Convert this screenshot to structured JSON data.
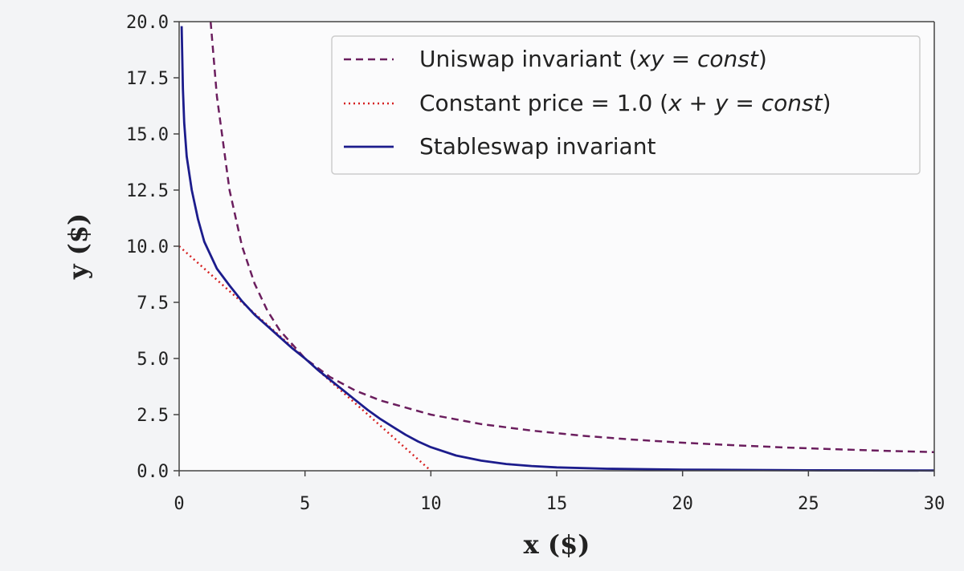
{
  "chart_data": {
    "type": "line",
    "xlabel": "x ($)",
    "ylabel": "y ($)",
    "xlim": [
      0,
      30
    ],
    "ylim": [
      0,
      20
    ],
    "xticks": [
      0,
      5,
      10,
      15,
      20,
      25,
      30
    ],
    "xtick_labels": [
      "0",
      "5",
      "10",
      "15",
      "20",
      "25",
      "30"
    ],
    "yticks": [
      0,
      2.5,
      5,
      7.5,
      10,
      12.5,
      15,
      17.5,
      20
    ],
    "ytick_labels": [
      "0.0",
      "2.5",
      "5.0",
      "7.5",
      "10.0",
      "12.5",
      "15.0",
      "17.5",
      "20.0"
    ],
    "grid": false,
    "legend_position": "top-right",
    "series": [
      {
        "name": "Uniswap invariant (xy = const)",
        "style": "dashed",
        "color": "#6b1e5e",
        "points": [
          [
            1.25,
            20
          ],
          [
            1.5,
            16.67
          ],
          [
            2,
            12.5
          ],
          [
            2.5,
            10
          ],
          [
            3,
            8.33
          ],
          [
            3.5,
            7.14
          ],
          [
            4,
            6.25
          ],
          [
            5,
            5
          ],
          [
            6,
            4.17
          ],
          [
            7,
            3.57
          ],
          [
            8,
            3.13
          ],
          [
            10,
            2.5
          ],
          [
            12,
            2.08
          ],
          [
            14,
            1.79
          ],
          [
            16,
            1.56
          ],
          [
            18,
            1.39
          ],
          [
            20,
            1.25
          ],
          [
            22,
            1.14
          ],
          [
            24,
            1.04
          ],
          [
            26,
            0.96
          ],
          [
            28,
            0.89
          ],
          [
            30,
            0.83
          ]
        ]
      },
      {
        "name": "Constant price = 1.0 (x + y = const)",
        "style": "dotted",
        "color": "#d62020",
        "points": [
          [
            0,
            10
          ],
          [
            10,
            0
          ]
        ]
      },
      {
        "name": "Stableswap invariant",
        "style": "solid",
        "color": "#1c1c8c",
        "points": [
          [
            0.1,
            19.8
          ],
          [
            0.15,
            17
          ],
          [
            0.2,
            15.5
          ],
          [
            0.3,
            14
          ],
          [
            0.5,
            12.5
          ],
          [
            0.75,
            11.2
          ],
          [
            1,
            10.2
          ],
          [
            1.5,
            9
          ],
          [
            2,
            8.25
          ],
          [
            2.5,
            7.55
          ],
          [
            3,
            6.95
          ],
          [
            3.5,
            6.45
          ],
          [
            4,
            5.95
          ],
          [
            4.5,
            5.45
          ],
          [
            5,
            5
          ],
          [
            5.5,
            4.5
          ],
          [
            6,
            4.05
          ],
          [
            6.5,
            3.6
          ],
          [
            7,
            3.15
          ],
          [
            7.5,
            2.7
          ],
          [
            8,
            2.3
          ],
          [
            8.5,
            1.95
          ],
          [
            9,
            1.6
          ],
          [
            9.5,
            1.3
          ],
          [
            10,
            1.05
          ],
          [
            11,
            0.68
          ],
          [
            12,
            0.45
          ],
          [
            13,
            0.3
          ],
          [
            14,
            0.21
          ],
          [
            15,
            0.15
          ],
          [
            17,
            0.09
          ],
          [
            20,
            0.05
          ],
          [
            25,
            0.02
          ],
          [
            30,
            0.01
          ]
        ]
      }
    ]
  },
  "legend": {
    "uniswap": {
      "pre": "Uniswap invariant (",
      "math": "xy",
      "eq": " = ",
      "const": "const",
      "post": ")"
    },
    "constant": {
      "pre": "Constant price = 1.0 (",
      "x": "x",
      "plus": " + ",
      "y": "y",
      "eq": " = ",
      "const": "const",
      "post": ")"
    },
    "stableswap": {
      "label": "Stableswap invariant"
    }
  }
}
